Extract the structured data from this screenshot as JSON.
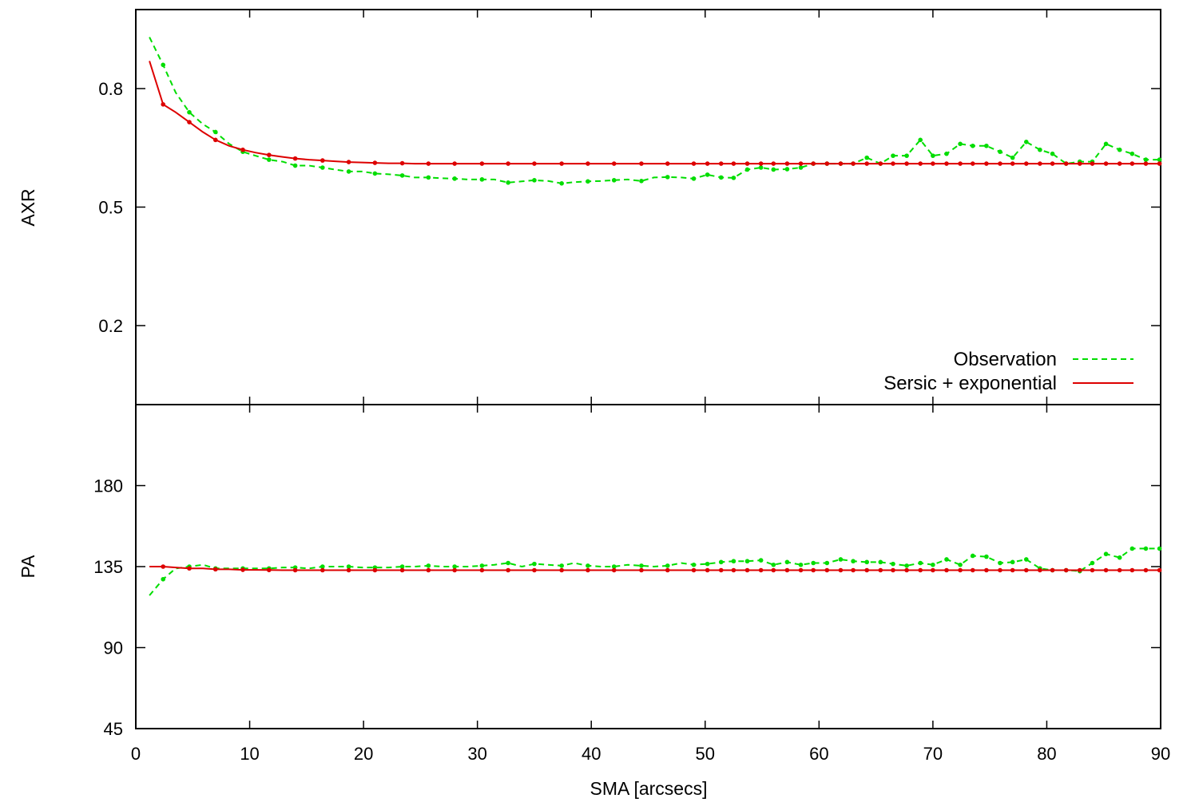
{
  "chart_data": [
    {
      "type": "line",
      "ylabel": "AXR",
      "xlim": [
        0,
        90
      ],
      "ylim": [
        0,
        1.0
      ],
      "yticks": [
        0.2,
        0.5,
        0.8
      ],
      "x_tick_labels_shown": false,
      "legend": {
        "placement": "bottom-right"
      },
      "series": [
        {
          "name": "Observation",
          "color": "#00dd00",
          "style": "dashed-with-points",
          "x": [
            1.2,
            2.4,
            3.5,
            4.7,
            5.9,
            7.0,
            8.2,
            9.4,
            10.5,
            11.7,
            12.9,
            14.0,
            15.2,
            16.4,
            17.5,
            18.7,
            19.9,
            21.0,
            22.2,
            23.4,
            24.5,
            25.7,
            26.9,
            28.0,
            29.2,
            30.4,
            31.5,
            32.7,
            33.9,
            35.0,
            36.2,
            37.4,
            38.5,
            39.7,
            40.9,
            42.0,
            43.2,
            44.4,
            45.5,
            46.7,
            47.9,
            49.0,
            50.2,
            51.4,
            52.5,
            53.7,
            54.9,
            56.0,
            57.2,
            58.4,
            59.5,
            60.7,
            61.9,
            63.0,
            64.2,
            65.4,
            66.5,
            67.7,
            68.9,
            70.0,
            71.2,
            72.4,
            73.5,
            74.7,
            75.9,
            77.0,
            78.2,
            79.4,
            80.5,
            81.7,
            82.9,
            84.0,
            85.2,
            86.4,
            87.5,
            88.7,
            89.9
          ],
          "values": [
            0.93,
            0.86,
            0.79,
            0.74,
            0.71,
            0.69,
            0.66,
            0.64,
            0.63,
            0.62,
            0.615,
            0.605,
            0.605,
            0.6,
            0.595,
            0.59,
            0.59,
            0.585,
            0.583,
            0.58,
            0.575,
            0.575,
            0.573,
            0.572,
            0.57,
            0.57,
            0.57,
            0.562,
            0.565,
            0.568,
            0.566,
            0.56,
            0.563,
            0.565,
            0.566,
            0.568,
            0.57,
            0.566,
            0.575,
            0.576,
            0.575,
            0.572,
            0.582,
            0.575,
            0.574,
            0.595,
            0.6,
            0.595,
            0.596,
            0.6,
            0.61,
            0.61,
            0.61,
            0.61,
            0.625,
            0.61,
            0.63,
            0.63,
            0.67,
            0.63,
            0.635,
            0.66,
            0.655,
            0.655,
            0.64,
            0.625,
            0.665,
            0.645,
            0.635,
            0.61,
            0.615,
            0.615,
            0.66,
            0.645,
            0.635,
            0.62,
            0.62
          ]
        },
        {
          "name": "Sersic + exponential",
          "color": "#dd0000",
          "style": "solid-with-points",
          "x": [
            1.2,
            2.4,
            3.5,
            4.7,
            5.9,
            7.0,
            8.2,
            9.4,
            10.5,
            11.7,
            12.9,
            14.0,
            15.2,
            16.4,
            17.5,
            18.7,
            19.9,
            21.0,
            22.2,
            23.4,
            24.5,
            25.7,
            26.9,
            28.0,
            29.2,
            30.4,
            31.5,
            32.7,
            33.9,
            35.0,
            36.2,
            37.4,
            38.5,
            39.7,
            40.9,
            42.0,
            43.2,
            44.4,
            45.5,
            46.7,
            47.9,
            49.0,
            50.2,
            51.4,
            52.5,
            53.7,
            54.9,
            56.0,
            57.2,
            58.4,
            59.5,
            60.7,
            61.9,
            63.0,
            64.2,
            65.4,
            66.5,
            67.7,
            68.9,
            70.0,
            71.2,
            72.4,
            73.5,
            74.7,
            75.9,
            77.0,
            78.2,
            79.4,
            80.5,
            81.7,
            82.9,
            84.0,
            85.2,
            86.4,
            87.5,
            88.7,
            89.9
          ],
          "values": [
            0.87,
            0.76,
            0.74,
            0.715,
            0.69,
            0.67,
            0.655,
            0.645,
            0.638,
            0.632,
            0.627,
            0.623,
            0.62,
            0.618,
            0.616,
            0.614,
            0.613,
            0.612,
            0.611,
            0.611,
            0.61,
            0.61,
            0.61,
            0.61,
            0.61,
            0.61,
            0.61,
            0.61,
            0.61,
            0.61,
            0.61,
            0.61,
            0.61,
            0.61,
            0.61,
            0.61,
            0.61,
            0.61,
            0.61,
            0.61,
            0.61,
            0.61,
            0.61,
            0.61,
            0.61,
            0.61,
            0.61,
            0.61,
            0.61,
            0.61,
            0.61,
            0.61,
            0.61,
            0.61,
            0.61,
            0.61,
            0.61,
            0.61,
            0.61,
            0.61,
            0.61,
            0.61,
            0.61,
            0.61,
            0.61,
            0.61,
            0.61,
            0.61,
            0.61,
            0.61,
            0.61,
            0.61,
            0.61,
            0.61,
            0.61,
            0.61,
            0.61
          ]
        }
      ]
    },
    {
      "type": "line",
      "xlabel": "SMA [arcsecs]",
      "ylabel": "PA",
      "xlim": [
        0,
        90
      ],
      "ylim": [
        45,
        225
      ],
      "xticks": [
        0,
        10,
        20,
        30,
        40,
        50,
        60,
        70,
        80,
        90
      ],
      "yticks": [
        45,
        90,
        135,
        180
      ],
      "series": [
        {
          "name": "Observation",
          "color": "#00dd00",
          "style": "dashed-with-points",
          "x": [
            1.2,
            2.4,
            3.5,
            4.7,
            5.9,
            7.0,
            8.2,
            9.4,
            10.5,
            11.7,
            12.9,
            14.0,
            15.2,
            16.4,
            17.5,
            18.7,
            19.9,
            21.0,
            22.2,
            23.4,
            24.5,
            25.7,
            26.9,
            28.0,
            29.2,
            30.4,
            31.5,
            32.7,
            33.9,
            35.0,
            36.2,
            37.4,
            38.5,
            39.7,
            40.9,
            42.0,
            43.2,
            44.4,
            45.5,
            46.7,
            47.9,
            49.0,
            50.2,
            51.4,
            52.5,
            53.7,
            54.9,
            56.0,
            57.2,
            58.4,
            59.5,
            60.7,
            61.9,
            63.0,
            64.2,
            65.4,
            66.5,
            67.7,
            68.9,
            70.0,
            71.2,
            72.4,
            73.5,
            74.7,
            75.9,
            77.0,
            78.2,
            79.4,
            80.5,
            81.7,
            82.9,
            84.0,
            85.2,
            86.4,
            87.5,
            88.7,
            89.9
          ],
          "values": [
            119,
            128,
            134,
            135,
            136,
            134,
            134,
            134,
            134,
            134,
            134.5,
            134.5,
            134,
            135,
            135,
            135,
            134.5,
            134.5,
            134.5,
            135,
            135,
            135.5,
            135,
            135,
            135,
            135.5,
            136,
            137,
            135,
            136.5,
            136,
            135.5,
            137,
            135.5,
            135,
            135,
            136,
            135.5,
            135,
            135.5,
            137,
            136,
            136.5,
            137.5,
            138,
            138,
            138.5,
            136,
            137.5,
            136,
            137,
            137,
            139,
            138,
            137.5,
            137.5,
            136.5,
            135.5,
            137,
            136,
            139,
            136,
            141,
            140.5,
            137,
            137.5,
            139,
            134,
            133,
            133,
            132.5,
            137,
            142,
            140,
            145,
            145,
            145
          ]
        },
        {
          "name": "Sersic + exponential",
          "color": "#dd0000",
          "style": "solid-with-points",
          "x": [
            1.2,
            2.4,
            3.5,
            4.7,
            5.9,
            7.0,
            8.2,
            9.4,
            10.5,
            11.7,
            12.9,
            14.0,
            15.2,
            16.4,
            17.5,
            18.7,
            19.9,
            21.0,
            22.2,
            23.4,
            24.5,
            25.7,
            26.9,
            28.0,
            29.2,
            30.4,
            31.5,
            32.7,
            33.9,
            35.0,
            36.2,
            37.4,
            38.5,
            39.7,
            40.9,
            42.0,
            43.2,
            44.4,
            45.5,
            46.7,
            47.9,
            49.0,
            50.2,
            51.4,
            52.5,
            53.7,
            54.9,
            56.0,
            57.2,
            58.4,
            59.5,
            60.7,
            61.9,
            63.0,
            64.2,
            65.4,
            66.5,
            67.7,
            68.9,
            70.0,
            71.2,
            72.4,
            73.5,
            74.7,
            75.9,
            77.0,
            78.2,
            79.4,
            80.5,
            81.7,
            82.9,
            84.0,
            85.2,
            86.4,
            87.5,
            88.7,
            89.9
          ],
          "values": [
            135,
            135,
            134.5,
            134,
            134,
            133.5,
            133.5,
            133.2,
            133.2,
            133.1,
            133,
            133,
            133,
            133,
            133,
            133,
            133,
            133,
            133,
            133,
            133,
            133,
            133,
            133,
            133,
            133,
            133,
            133,
            133,
            133,
            133,
            133,
            133,
            133,
            133,
            133,
            133,
            133,
            133,
            133,
            133,
            133,
            133,
            133,
            133,
            133,
            133,
            133,
            133,
            133,
            133,
            133,
            133,
            133,
            133,
            133,
            133,
            133,
            133,
            133,
            133,
            133,
            133,
            133,
            133,
            133,
            133,
            133,
            133,
            133,
            133,
            133,
            133,
            133,
            133,
            133,
            133
          ]
        }
      ]
    }
  ]
}
